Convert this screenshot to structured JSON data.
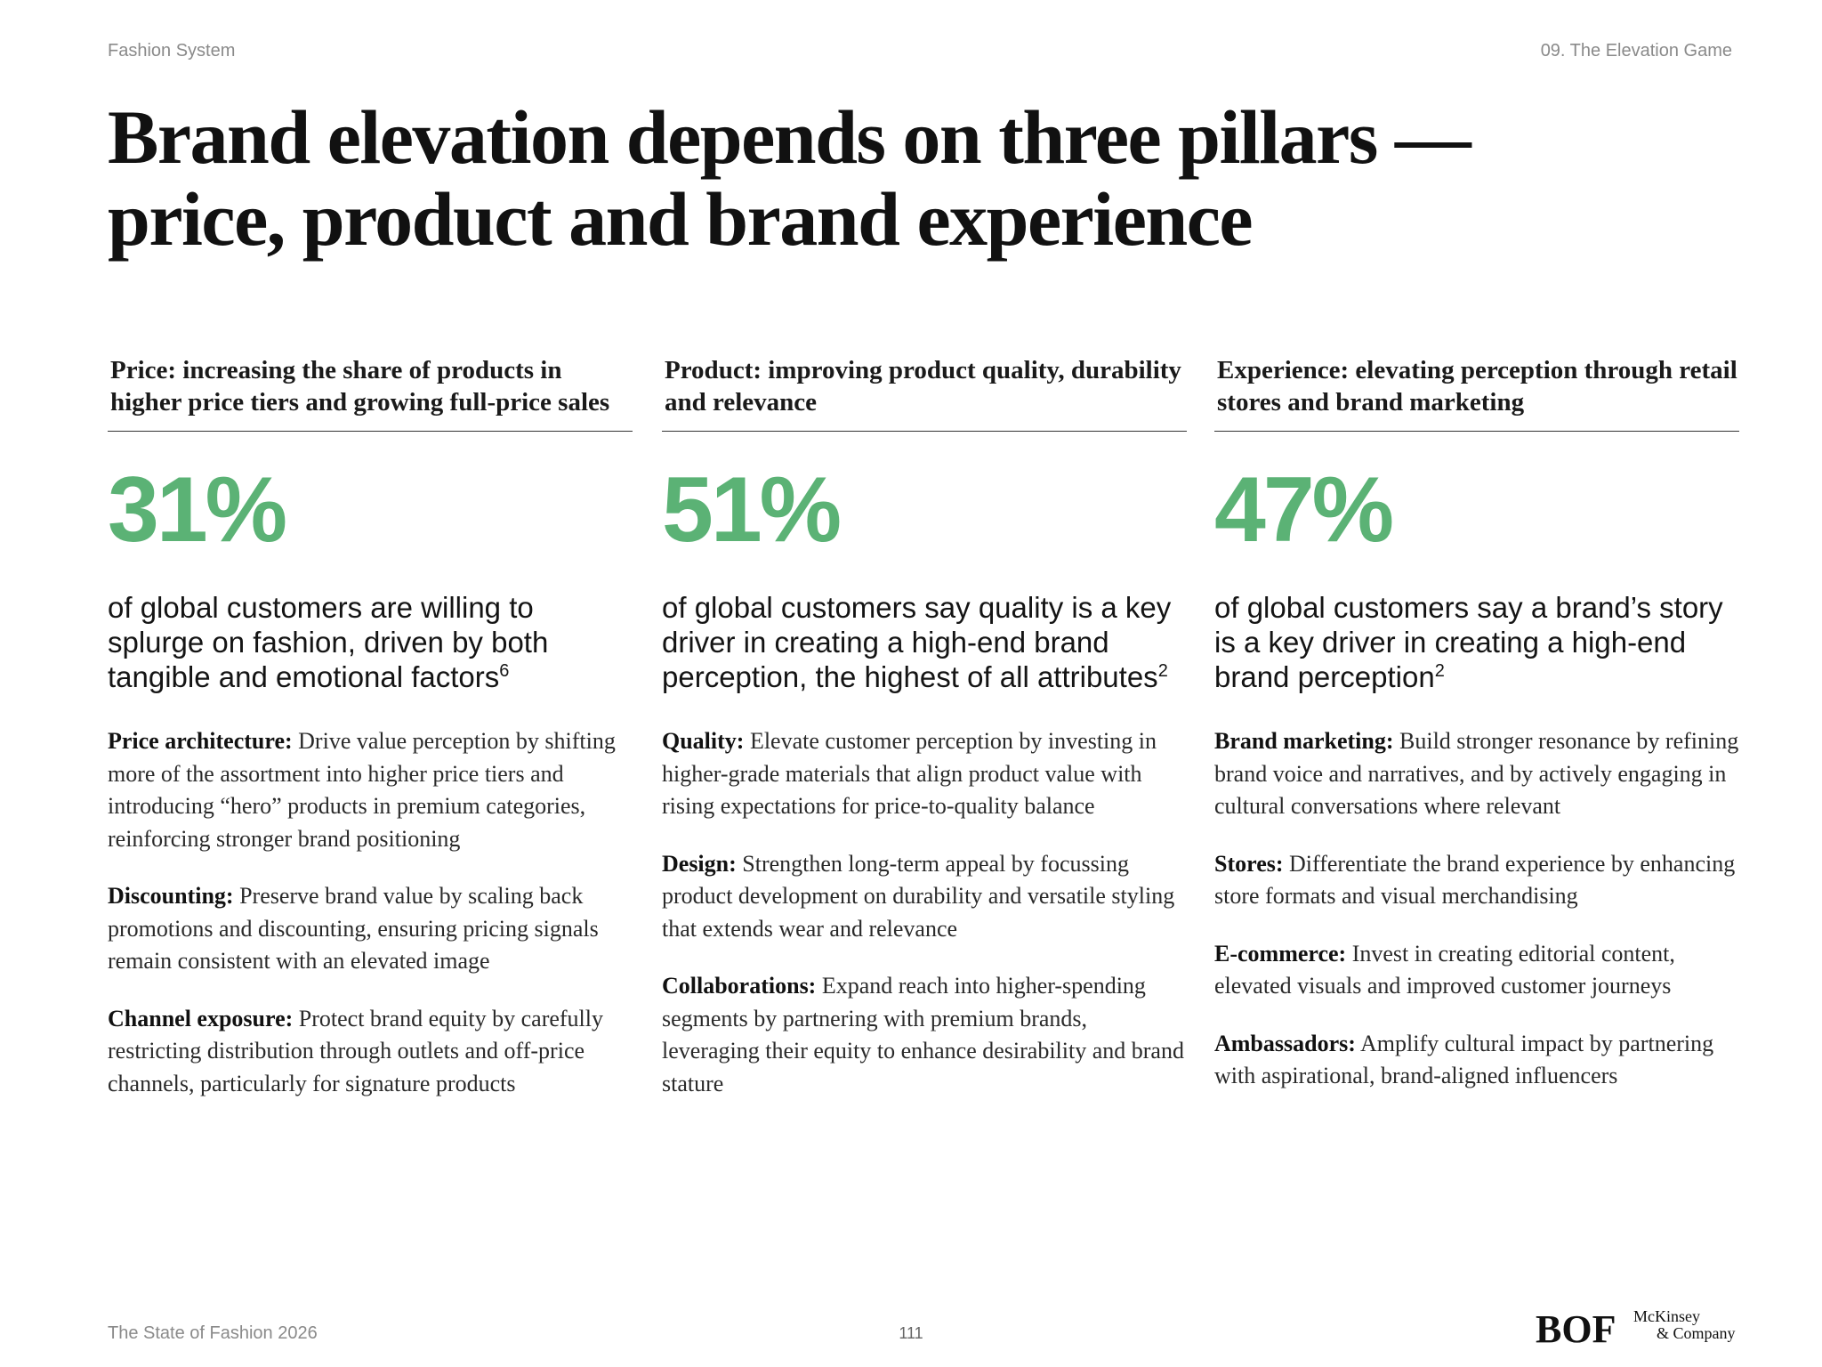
{
  "header": {
    "left": "Fashion System",
    "right": "09. The Elevation Game"
  },
  "title": "Brand elevation depends on three pillars — price, product and brand experience",
  "pillars": [
    {
      "heading": "Price: increasing the share of products in higher price tiers and growing full-price sales",
      "stat": "31%",
      "description": "of global customers are willing to splurge on fashion, driven by both tangible and emotional factors",
      "footnote": "6",
      "items": [
        {
          "label": "Price architecture:",
          "text": "Drive value perception by shifting more of the assortment into higher price tiers and introducing “hero” products in premium categories, reinforcing stronger brand positioning"
        },
        {
          "label": "Discounting:",
          "text": "Preserve brand value by scaling back promotions and discounting, ensuring pricing signals remain consistent with an elevated image"
        },
        {
          "label": "Channel exposure:",
          "text": "Protect brand equity by carefully restricting distribution through outlets and off-price channels, particularly for signature products"
        }
      ]
    },
    {
      "heading": "Product: improving product quality, durability and relevance",
      "stat": "51%",
      "description": "of global customers say quality is a key driver in creating a high-end brand perception, the highest of all attributes",
      "footnote": "2",
      "items": [
        {
          "label": "Quality:",
          "text": "Elevate customer perception by investing in higher-grade materials that align product value with rising expectations for price-to-quality balance"
        },
        {
          "label": "Design:",
          "text": "Strengthen long-term appeal by focussing product development on durability and versatile styling that extends wear and relevance"
        },
        {
          "label": "Collaborations:",
          "text": "Expand reach into higher-spending segments by partnering with premium brands, leveraging their equity to enhance desirability and brand stature"
        }
      ]
    },
    {
      "heading": "Experience: elevating perception through retail stores and brand marketing",
      "stat": "47%",
      "description": "of global customers say a brand’s story is a key driver in creating a high-end brand perception",
      "footnote": "2",
      "items": [
        {
          "label": "Brand marketing:",
          "text": "Build stronger resonance by refining brand voice and narratives, and by actively engaging in cultural conversations where relevant"
        },
        {
          "label": "Stores:",
          "text": "Differentiate the brand experience by enhancing store formats and visual merchandising"
        },
        {
          "label": "E-commerce:",
          "text": "Invest in creating editorial content, elevated visuals and improved customer journeys"
        },
        {
          "label": "Ambassadors:",
          "text": "Amplify cultural impact by partnering with aspirational, brand-aligned influencers"
        }
      ]
    }
  ],
  "footer": {
    "publication": "The State of Fashion 2026",
    "page_number": "111",
    "logo_bof": "BOF",
    "logo_mckinsey_line1": "McKinsey",
    "logo_mckinsey_line2": "& Company"
  },
  "colors": {
    "accent_green": "#5bb275",
    "muted_text": "#8a8a8a"
  }
}
